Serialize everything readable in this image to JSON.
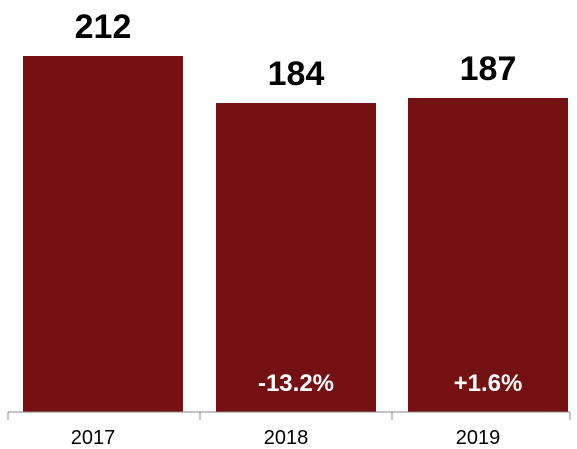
{
  "chart_data": {
    "type": "bar",
    "categories": [
      "2017",
      "2018",
      "2019"
    ],
    "values": [
      212,
      184,
      187
    ],
    "change_labels": [
      "",
      "-13.2%",
      "+1.6%"
    ],
    "bar_color": "#741113",
    "title": "",
    "xlabel": "",
    "ylabel": "",
    "ylim": [
      0,
      212
    ],
    "grid": false,
    "legend": "none"
  }
}
